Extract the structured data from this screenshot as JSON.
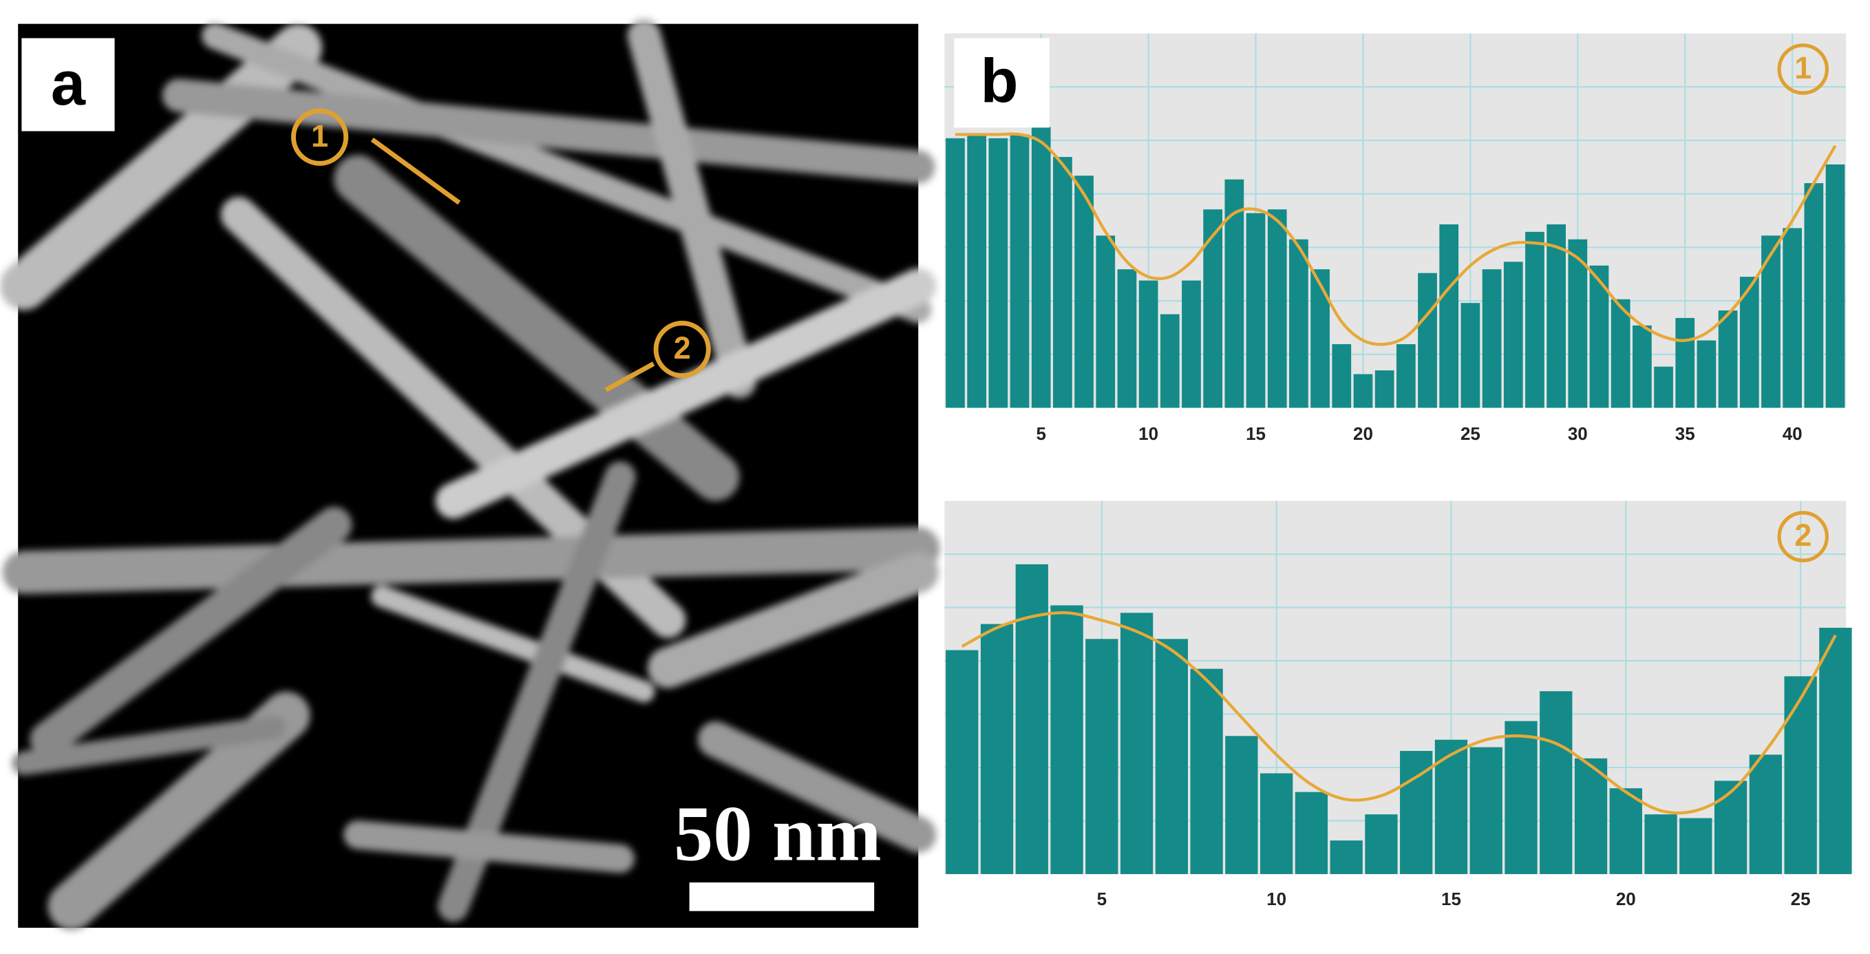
{
  "panel_a": {
    "label": "a",
    "scale_bar": "50 nm",
    "markers": [
      "1",
      "2"
    ]
  },
  "panel_b_label": "b",
  "chart_data": [
    {
      "type": "bar",
      "marker": "1",
      "x": [
        1,
        2,
        3,
        4,
        5,
        6,
        7,
        8,
        9,
        10,
        11,
        12,
        13,
        14,
        15,
        16,
        17,
        18,
        19,
        20,
        21,
        22,
        23,
        24,
        25,
        26,
        27,
        28,
        29,
        30,
        31,
        32,
        33,
        34,
        35,
        36,
        37,
        38,
        39,
        40,
        41,
        42
      ],
      "values": [
        72,
        73,
        72,
        73,
        75,
        67,
        62,
        46,
        37,
        34,
        25,
        34,
        53,
        61,
        52,
        53,
        45,
        37,
        17,
        9,
        10,
        17,
        36,
        49,
        28,
        37,
        39,
        47,
        49,
        45,
        38,
        29,
        22,
        11,
        24,
        18,
        26,
        35,
        46,
        48,
        60,
        65
      ],
      "fit_values": [
        73,
        73,
        73,
        73,
        71,
        65,
        57,
        47,
        39,
        35,
        35,
        39,
        46,
        52,
        53,
        50,
        43,
        33,
        23,
        18,
        17,
        19,
        25,
        32,
        38,
        42,
        44,
        44,
        43,
        40,
        34,
        27,
        22,
        19,
        18,
        20,
        25,
        32,
        41,
        50,
        60,
        70
      ],
      "color": "#148b88",
      "fit_color": "#e8a838",
      "xlim": [
        0.5,
        42.5
      ],
      "xticks": [
        5,
        10,
        15,
        20,
        25,
        30,
        35,
        40
      ],
      "ylim": [
        0,
        100
      ],
      "grid": true
    },
    {
      "type": "bar",
      "marker": "2",
      "x": [
        1,
        2,
        3,
        4,
        5,
        6,
        7,
        8,
        9,
        10,
        11,
        12,
        13,
        14,
        15,
        16,
        17,
        18,
        19,
        20,
        21,
        22,
        23,
        24,
        25,
        26
      ],
      "values": [
        60,
        67,
        83,
        72,
        63,
        70,
        63,
        55,
        37,
        27,
        22,
        9,
        16,
        33,
        36,
        34,
        41,
        49,
        31,
        23,
        16,
        15,
        25,
        32,
        53,
        66
      ],
      "fit_values": [
        61,
        66,
        69,
        70,
        68,
        65,
        60,
        52,
        42,
        32,
        24,
        20,
        21,
        26,
        32,
        36,
        37,
        35,
        29,
        22,
        17,
        17,
        22,
        33,
        47,
        64
      ],
      "color": "#148b88",
      "fit_color": "#e8a838",
      "xlim": [
        0.5,
        26.3
      ],
      "xticks": [
        5,
        10,
        15,
        20,
        25
      ],
      "ylim": [
        0,
        100
      ],
      "grid": true
    }
  ]
}
